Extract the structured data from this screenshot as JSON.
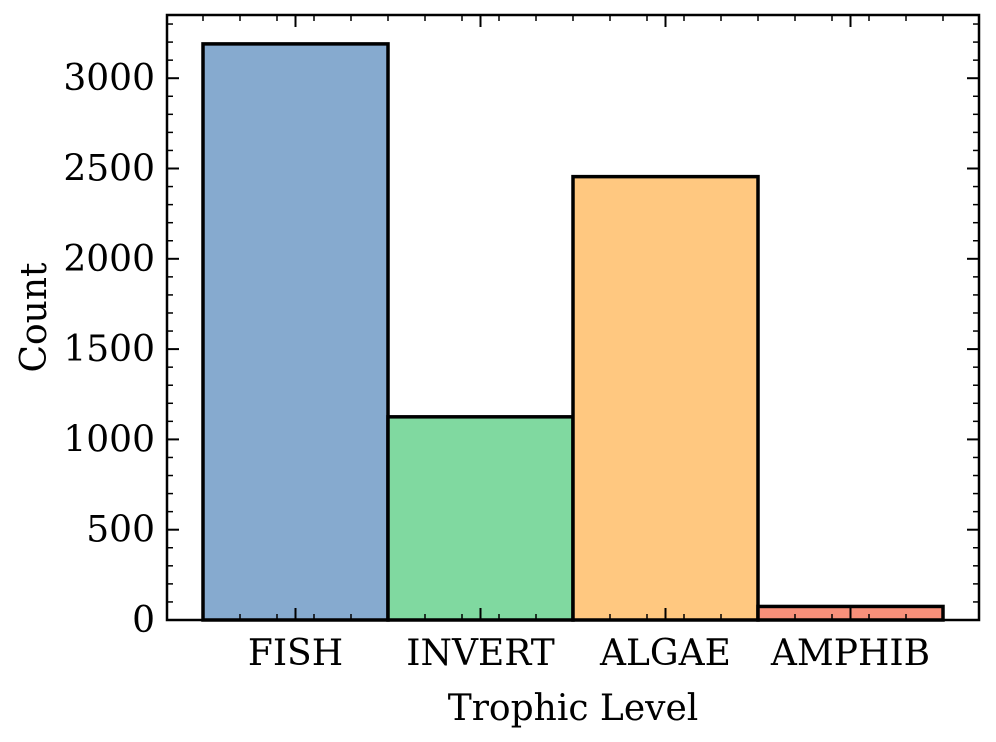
{
  "chart_data": {
    "type": "bar",
    "categories": [
      "FISH",
      "INVERT",
      "ALGAE",
      "AMPHIB"
    ],
    "values": [
      3190,
      1125,
      2455,
      75
    ],
    "colors": [
      "#86aacf",
      "#80d9a0",
      "#ffc880",
      "#f9907a"
    ],
    "edge_color": "#000000",
    "xlabel": "Trophic Level",
    "ylabel": "Count",
    "ylim": [
      0,
      3350
    ],
    "yticks": [
      0,
      500,
      1000,
      1500,
      2000,
      2500,
      3000
    ],
    "yticks_minor_step": 100,
    "grid": false,
    "legend": "none"
  }
}
